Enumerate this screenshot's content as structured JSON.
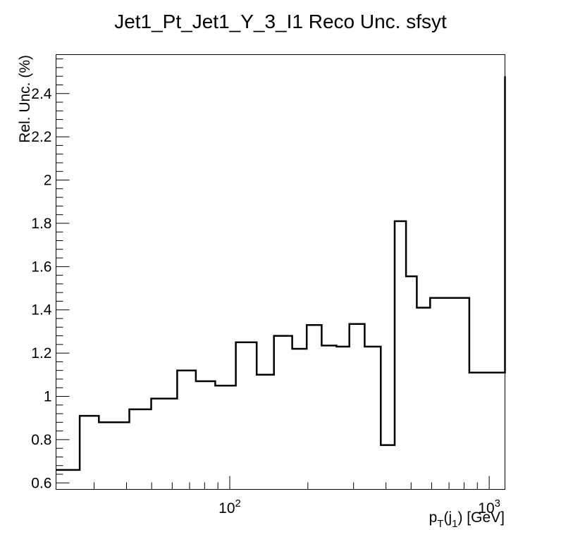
{
  "chart_data": {
    "type": "line",
    "style": "step-histogram",
    "title": "Jet1_Pt_Jet1_Y_3_I1 Reco Unc. sfsyt",
    "ylabel": "Rel. Unc. (%)",
    "xlabel_main": "p",
    "xlabel_sub1": "T",
    "xlabel_mid": "(j",
    "xlabel_sub2": "1",
    "xlabel_end": ") [GeV]",
    "x_scale": "log",
    "xlim": [
      21.4,
      1150
    ],
    "ylim": [
      0.57,
      2.58
    ],
    "y_ticks": [
      {
        "value": 0.6,
        "label": "0.6"
      },
      {
        "value": 0.8,
        "label": "0.8"
      },
      {
        "value": 1.0,
        "label": "1"
      },
      {
        "value": 1.2,
        "label": "1.2"
      },
      {
        "value": 1.4,
        "label": "1.4"
      },
      {
        "value": 1.6,
        "label": "1.6"
      },
      {
        "value": 1.8,
        "label": "1.8"
      },
      {
        "value": 2.0,
        "label": "2"
      },
      {
        "value": 2.2,
        "label": "2.2"
      },
      {
        "value": 2.4,
        "label": "2.4"
      }
    ],
    "x_ticks": [
      {
        "value": 100,
        "base": "10",
        "exp": "2"
      },
      {
        "value": 1000,
        "base": "10",
        "exp": "3"
      }
    ],
    "bin_edges": [
      21.4,
      26.4,
      31.3,
      41,
      49.8,
      62.7,
      74,
      87.9,
      105.5,
      127,
      148,
      174,
      198,
      226,
      258,
      289,
      331,
      382,
      432,
      478,
      526,
      592,
      838,
      1150
    ],
    "values": [
      0.66,
      0.91,
      0.88,
      0.94,
      0.99,
      1.12,
      1.07,
      1.05,
      1.25,
      1.1,
      1.28,
      1.22,
      1.33,
      1.235,
      1.23,
      1.335,
      1.23,
      0.775,
      1.81,
      1.555,
      1.41,
      1.455,
      1.11,
      2.48
    ],
    "grid": false,
    "legend": "none"
  }
}
